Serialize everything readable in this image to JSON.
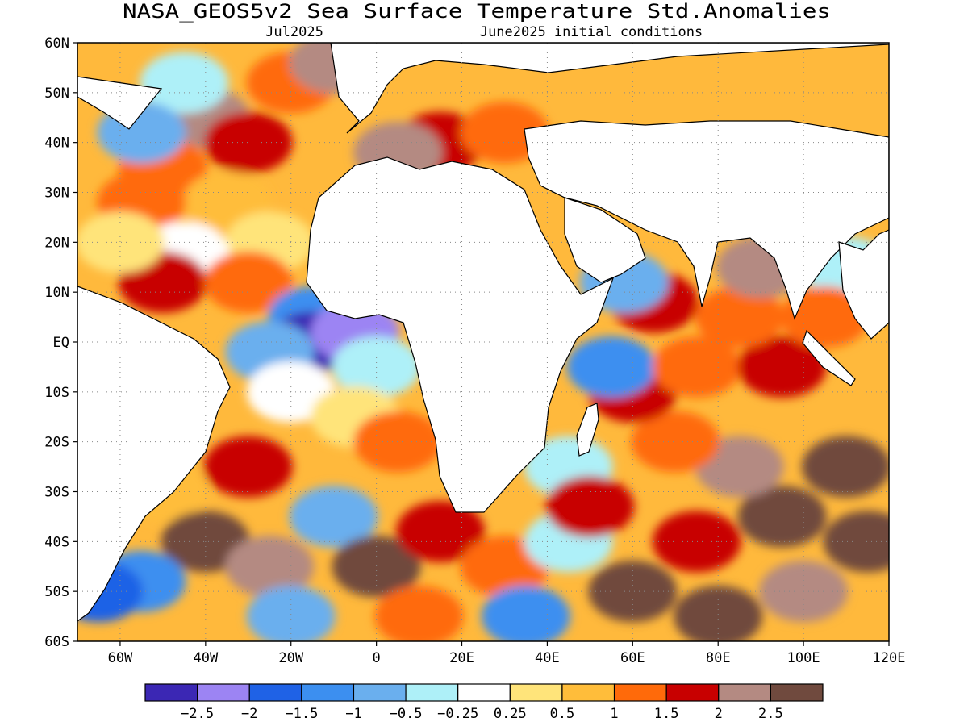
{
  "header": {
    "title": "NASA_GEOS5v2 Sea Surface Temperature Std.Anomalies",
    "month": "Jul2025",
    "init": "June2025 initial conditions"
  },
  "map": {
    "lon_range": [
      -70,
      120
    ],
    "lat_range": [
      -60,
      60
    ],
    "lat_labels": [
      "60N",
      "50N",
      "40N",
      "30N",
      "20N",
      "10N",
      "EQ",
      "10S",
      "20S",
      "30S",
      "40S",
      "50S",
      "60S"
    ],
    "lon_labels": [
      "60W",
      "40W",
      "20W",
      "0",
      "20E",
      "40E",
      "60E",
      "80E",
      "100E",
      "120E"
    ],
    "gridlines": true,
    "land_color": "#ffffff"
  },
  "colorbar": {
    "colors": [
      "#3b27b4",
      "#9c84f3",
      "#1f62e6",
      "#3c8ff0",
      "#6aafee",
      "#aef0f8",
      "#ffffff",
      "#ffe47a",
      "#ffbd3a",
      "#ff6a0a",
      "#c80000",
      "#b48a82",
      "#704a3e"
    ],
    "labels": [
      "−2.5",
      "−2",
      "−1.5",
      "−1",
      "−0.5",
      "−0.25",
      "0.25",
      "0.5",
      "1",
      "1.5",
      "2",
      "2.5"
    ]
  },
  "regions": [
    {
      "lon": -40,
      "lat": 45,
      "c": 11
    },
    {
      "lon": -50,
      "lat": 35,
      "c": 9
    },
    {
      "lon": -30,
      "lat": 40,
      "c": 10
    },
    {
      "lon": -20,
      "lat": 52,
      "c": 9
    },
    {
      "lon": -45,
      "lat": 52,
      "c": 5
    },
    {
      "lon": -55,
      "lat": 42,
      "c": 4
    },
    {
      "lon": -35,
      "lat": 28,
      "c": 8
    },
    {
      "lon": -55,
      "lat": 28,
      "c": 9
    },
    {
      "lon": -25,
      "lat": 20,
      "c": 7
    },
    {
      "lon": -45,
      "lat": 18,
      "c": 6
    },
    {
      "lon": -50,
      "lat": 12,
      "c": 10
    },
    {
      "lon": -30,
      "lat": 12,
      "c": 9
    },
    {
      "lon": -15,
      "lat": 5,
      "c": 3
    },
    {
      "lon": -15,
      "lat": 0,
      "c": 0
    },
    {
      "lon": -5,
      "lat": 2,
      "c": 1
    },
    {
      "lon": -25,
      "lat": -2,
      "c": 4
    },
    {
      "lon": 0,
      "lat": -5,
      "c": 5
    },
    {
      "lon": -20,
      "lat": -10,
      "c": 6
    },
    {
      "lon": -5,
      "lat": -15,
      "c": 7
    },
    {
      "lon": 5,
      "lat": -20,
      "c": 9
    },
    {
      "lon": -30,
      "lat": -25,
      "c": 10
    },
    {
      "lon": -50,
      "lat": -30,
      "c": 8
    },
    {
      "lon": -40,
      "lat": -40,
      "c": 12
    },
    {
      "lon": -55,
      "lat": -48,
      "c": 3
    },
    {
      "lon": -25,
      "lat": -45,
      "c": 11
    },
    {
      "lon": -10,
      "lat": -35,
      "c": 4
    },
    {
      "lon": 0,
      "lat": -45,
      "c": 12
    },
    {
      "lon": 15,
      "lat": -38,
      "c": 10
    },
    {
      "lon": 30,
      "lat": -45,
      "c": 9
    },
    {
      "lon": 45,
      "lat": -40,
      "c": 5
    },
    {
      "lon": 35,
      "lat": -55,
      "c": 3
    },
    {
      "lon": 60,
      "lat": -50,
      "c": 12
    },
    {
      "lon": 80,
      "lat": -55,
      "c": 12
    },
    {
      "lon": 100,
      "lat": -50,
      "c": 11
    },
    {
      "lon": 75,
      "lat": -40,
      "c": 10
    },
    {
      "lon": 95,
      "lat": -35,
      "c": 12
    },
    {
      "lon": 110,
      "lat": -25,
      "c": 12
    },
    {
      "lon": 85,
      "lat": -25,
      "c": 11
    },
    {
      "lon": 70,
      "lat": -20,
      "c": 9
    },
    {
      "lon": 60,
      "lat": -10,
      "c": 10
    },
    {
      "lon": 55,
      "lat": -5,
      "c": 3
    },
    {
      "lon": 75,
      "lat": -5,
      "c": 9
    },
    {
      "lon": 95,
      "lat": -5,
      "c": 10
    },
    {
      "lon": 85,
      "lat": 5,
      "c": 9
    },
    {
      "lon": 65,
      "lat": 8,
      "c": 10
    },
    {
      "lon": 58,
      "lat": 12,
      "c": 4
    },
    {
      "lon": 90,
      "lat": 15,
      "c": 11
    },
    {
      "lon": 110,
      "lat": 15,
      "c": 5
    },
    {
      "lon": 105,
      "lat": 5,
      "c": 9
    },
    {
      "lon": 45,
      "lat": -25,
      "c": 5
    },
    {
      "lon": 15,
      "lat": 40,
      "c": 10
    },
    {
      "lon": 5,
      "lat": 38,
      "c": 11
    },
    {
      "lon": 30,
      "lat": 42,
      "c": 9
    },
    {
      "lon": -10,
      "lat": 56,
      "c": 11
    },
    {
      "lon": -60,
      "lat": 20,
      "c": 7
    },
    {
      "lon": -65,
      "lat": -50,
      "c": 2
    },
    {
      "lon": -20,
      "lat": -55,
      "c": 4
    },
    {
      "lon": 10,
      "lat": -55,
      "c": 9
    },
    {
      "lon": 115,
      "lat": -40,
      "c": 12
    },
    {
      "lon": 50,
      "lat": -33,
      "c": 10
    }
  ]
}
